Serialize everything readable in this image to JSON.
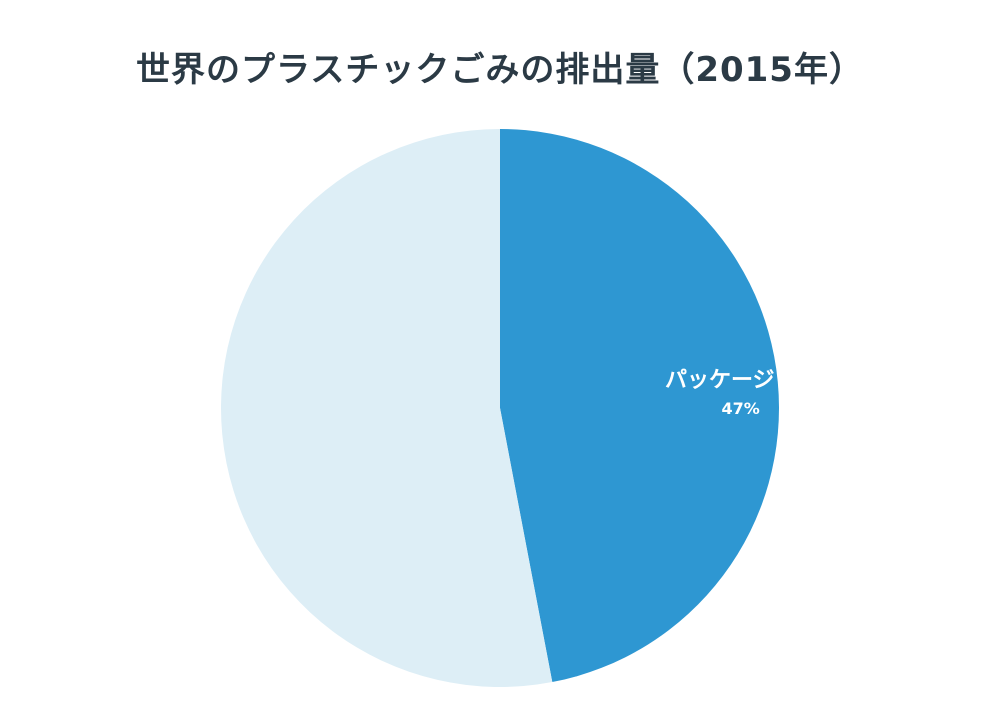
{
  "chart_data": {
    "type": "pie",
    "title": "世界のプラスチックごみの排出量（2015年）",
    "slices": [
      {
        "name": "パッケージ",
        "value": 47,
        "value_label": "47%",
        "color": "#2e97d2",
        "labeled": true
      },
      {
        "name": "",
        "value": 53,
        "value_label": "",
        "color": "#ddeef6",
        "labeled": false
      }
    ],
    "start": "12 o'clock",
    "direction": "clockwise",
    "legend": "none"
  }
}
